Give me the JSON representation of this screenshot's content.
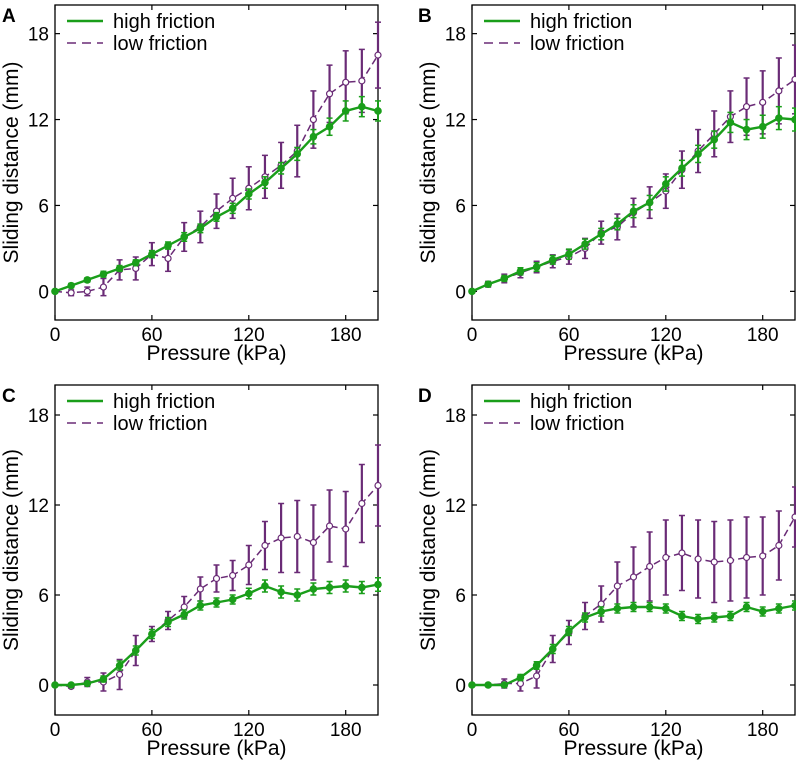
{
  "figure": {
    "colors": {
      "high": "#1a9e1a",
      "low": "#6a2b76"
    }
  },
  "chart_data": [
    {
      "panel": "A",
      "type": "line",
      "xlabel": "Pressure (kPa)",
      "ylabel": "Sliding distance (mm)",
      "xlim": [
        0,
        200
      ],
      "ylim": [
        -2,
        20
      ],
      "xticks": [
        0,
        60,
        120,
        180
      ],
      "yticks": [
        0,
        6,
        12,
        18
      ],
      "legend": {
        "location": "top-left",
        "entries": [
          "high friction",
          "low friction"
        ]
      },
      "x": [
        0,
        10,
        20,
        30,
        40,
        50,
        60,
        70,
        80,
        90,
        100,
        110,
        120,
        130,
        140,
        150,
        160,
        170,
        180,
        190,
        200
      ],
      "series": [
        {
          "name": "high friction",
          "style": "solid",
          "marker": "filled-circle",
          "values": [
            0.0,
            0.4,
            0.8,
            1.2,
            1.6,
            2.0,
            2.6,
            3.2,
            3.8,
            4.4,
            5.2,
            5.8,
            6.8,
            7.6,
            8.6,
            9.6,
            10.8,
            11.5,
            12.6,
            12.9,
            12.6
          ],
          "errors": [
            0.1,
            0.15,
            0.15,
            0.2,
            0.2,
            0.2,
            0.25,
            0.25,
            0.3,
            0.3,
            0.3,
            0.35,
            0.35,
            0.4,
            0.4,
            0.45,
            0.5,
            0.6,
            0.7,
            0.7,
            0.7
          ]
        },
        {
          "name": "low friction",
          "style": "dashed",
          "marker": "open-circle",
          "values": [
            0.0,
            -0.1,
            0.0,
            0.3,
            1.5,
            1.6,
            2.6,
            2.3,
            3.8,
            4.5,
            5.6,
            6.5,
            7.2,
            8.0,
            8.8,
            9.8,
            12.0,
            13.8,
            14.6,
            14.7,
            16.5
          ],
          "errors": [
            0.1,
            0.2,
            0.3,
            0.6,
            0.7,
            0.8,
            0.8,
            0.9,
            1.0,
            1.1,
            1.2,
            1.4,
            1.5,
            1.5,
            1.6,
            1.8,
            2.0,
            2.0,
            2.2,
            2.2,
            2.3
          ]
        }
      ]
    },
    {
      "panel": "B",
      "type": "line",
      "xlabel": "Pressure (kPa)",
      "ylabel": "Sliding distance (mm)",
      "xlim": [
        0,
        200
      ],
      "ylim": [
        -2,
        20
      ],
      "xticks": [
        0,
        60,
        120,
        180
      ],
      "yticks": [
        0,
        6,
        12,
        18
      ],
      "legend": {
        "location": "top-left",
        "entries": [
          "high friction",
          "low friction"
        ]
      },
      "x": [
        0,
        10,
        20,
        30,
        40,
        50,
        60,
        70,
        80,
        90,
        100,
        110,
        120,
        130,
        140,
        150,
        160,
        170,
        180,
        190,
        200
      ],
      "series": [
        {
          "name": "high friction",
          "style": "solid",
          "marker": "filled-circle",
          "values": [
            0.0,
            0.5,
            0.9,
            1.4,
            1.7,
            2.2,
            2.6,
            3.3,
            4.0,
            4.7,
            5.6,
            6.2,
            7.5,
            8.6,
            9.6,
            10.6,
            11.8,
            11.3,
            11.5,
            12.1,
            12.0
          ],
          "errors": [
            0.1,
            0.15,
            0.2,
            0.25,
            0.3,
            0.3,
            0.35,
            0.35,
            0.4,
            0.4,
            0.45,
            0.5,
            0.5,
            0.55,
            0.6,
            0.6,
            0.7,
            0.7,
            0.8,
            0.8,
            0.8
          ]
        },
        {
          "name": "low friction",
          "style": "dashed",
          "marker": "open-circle",
          "values": [
            0.0,
            0.5,
            0.9,
            1.3,
            1.7,
            2.1,
            2.4,
            3.0,
            4.1,
            4.5,
            5.5,
            6.2,
            7.0,
            8.5,
            9.8,
            11.0,
            12.2,
            12.9,
            13.2,
            14.0,
            14.8
          ],
          "errors": [
            0.1,
            0.2,
            0.3,
            0.35,
            0.4,
            0.45,
            0.5,
            0.7,
            0.8,
            0.9,
            1.0,
            1.1,
            1.2,
            1.3,
            1.5,
            1.6,
            1.8,
            2.0,
            2.2,
            2.3,
            2.4
          ]
        }
      ]
    },
    {
      "panel": "C",
      "type": "line",
      "xlabel": "Pressure (kPa)",
      "ylabel": "Sliding distance (mm)",
      "xlim": [
        0,
        200
      ],
      "ylim": [
        -2,
        20
      ],
      "xticks": [
        0,
        60,
        120,
        180
      ],
      "yticks": [
        0,
        6,
        12,
        18
      ],
      "legend": {
        "location": "top-left",
        "entries": [
          "high friction",
          "low friction"
        ]
      },
      "x": [
        0,
        10,
        20,
        30,
        40,
        50,
        60,
        70,
        80,
        90,
        100,
        110,
        120,
        130,
        140,
        150,
        160,
        170,
        180,
        190,
        200
      ],
      "series": [
        {
          "name": "high friction",
          "style": "solid",
          "marker": "filled-circle",
          "values": [
            0.0,
            0.0,
            0.1,
            0.4,
            1.3,
            2.3,
            3.4,
            4.2,
            4.7,
            5.3,
            5.5,
            5.7,
            6.1,
            6.6,
            6.2,
            6.0,
            6.4,
            6.5,
            6.6,
            6.5,
            6.7
          ],
          "errors": [
            0.05,
            0.1,
            0.1,
            0.2,
            0.3,
            0.3,
            0.3,
            0.3,
            0.3,
            0.3,
            0.3,
            0.3,
            0.35,
            0.4,
            0.4,
            0.4,
            0.4,
            0.4,
            0.4,
            0.4,
            0.45
          ]
        },
        {
          "name": "low friction",
          "style": "dashed",
          "marker": "open-circle",
          "values": [
            0.0,
            -0.1,
            0.2,
            0.2,
            0.7,
            2.3,
            3.4,
            4.3,
            5.2,
            6.4,
            7.1,
            7.3,
            8.0,
            9.3,
            9.8,
            9.9,
            9.5,
            10.6,
            10.4,
            12.1,
            13.3
          ],
          "errors": [
            0.05,
            0.1,
            0.3,
            0.6,
            1.0,
            1.0,
            0.5,
            0.6,
            0.7,
            0.8,
            0.9,
            1.0,
            1.3,
            1.6,
            2.3,
            2.4,
            2.5,
            2.4,
            2.5,
            2.6,
            2.7
          ]
        }
      ]
    },
    {
      "panel": "D",
      "type": "line",
      "xlabel": "Pressure (kPa)",
      "ylabel": "Sliding distance (mm)",
      "xlim": [
        0,
        200
      ],
      "ylim": [
        -2,
        20
      ],
      "xticks": [
        0,
        60,
        120,
        180
      ],
      "yticks": [
        0,
        6,
        12,
        18
      ],
      "legend": {
        "location": "top-left",
        "entries": [
          "high friction",
          "low friction"
        ]
      },
      "x": [
        0,
        10,
        20,
        30,
        40,
        50,
        60,
        70,
        80,
        90,
        100,
        110,
        120,
        130,
        140,
        150,
        160,
        170,
        180,
        190,
        200
      ],
      "series": [
        {
          "name": "high friction",
          "style": "solid",
          "marker": "filled-circle",
          "values": [
            0.0,
            0.0,
            0.0,
            0.5,
            1.3,
            2.4,
            3.6,
            4.5,
            4.9,
            5.1,
            5.2,
            5.2,
            5.1,
            4.6,
            4.4,
            4.5,
            4.6,
            5.2,
            4.9,
            5.1,
            5.3
          ],
          "errors": [
            0.05,
            0.1,
            0.1,
            0.2,
            0.25,
            0.3,
            0.3,
            0.3,
            0.3,
            0.3,
            0.3,
            0.3,
            0.3,
            0.3,
            0.3,
            0.3,
            0.3,
            0.3,
            0.3,
            0.3,
            0.3
          ]
        },
        {
          "name": "low friction",
          "style": "dashed",
          "marker": "open-circle",
          "values": [
            0.0,
            0.0,
            0.1,
            0.1,
            0.6,
            2.4,
            3.5,
            4.6,
            5.4,
            6.6,
            7.2,
            7.9,
            8.5,
            8.8,
            8.4,
            8.2,
            8.3,
            8.5,
            8.6,
            9.3,
            11.2
          ],
          "errors": [
            0.05,
            0.1,
            0.3,
            0.5,
            0.8,
            0.9,
            0.8,
            0.9,
            1.2,
            1.6,
            2.0,
            2.3,
            2.5,
            2.5,
            2.6,
            2.7,
            2.7,
            2.7,
            2.6,
            2.3,
            2.0
          ]
        }
      ]
    }
  ]
}
